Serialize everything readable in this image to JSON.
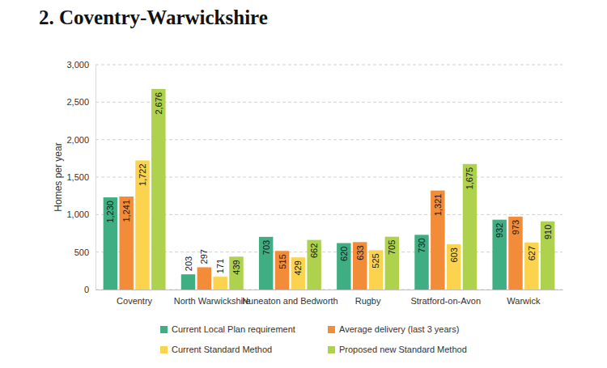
{
  "chart_data": {
    "type": "bar",
    "title": "2. Coventry-Warwickshire",
    "y_label": "Homes per year",
    "categories": [
      "Coventry",
      "North Warwickshire",
      "Nuneaton and Bedworth",
      "Rugby",
      "Stratford-on-Avon",
      "Warwick"
    ],
    "series": [
      {
        "name": "Current Local Plan requirement",
        "color": "#3fae83",
        "values": [
          1230,
          203,
          703,
          620,
          730,
          932
        ],
        "value_labels": [
          "1,230",
          "203",
          "703",
          "620",
          "730",
          "932"
        ]
      },
      {
        "name": "Average delivery (last 3 years)",
        "color": "#f28c38",
        "values": [
          1241,
          297,
          515,
          633,
          1321,
          973
        ],
        "value_labels": [
          "1,241",
          "297",
          "515",
          "633",
          "1,321",
          "973"
        ]
      },
      {
        "name": "Current Standard Method",
        "color": "#fbd34f",
        "values": [
          1722,
          171,
          429,
          525,
          603,
          627
        ],
        "value_labels": [
          "1,722",
          "171",
          "429",
          "525",
          "603",
          "627"
        ]
      },
      {
        "name": "Proposed new Standard Method",
        "color": "#aed14e",
        "values": [
          2676,
          439,
          662,
          705,
          1675,
          910
        ],
        "value_labels": [
          "2,676",
          "439",
          "662",
          "705",
          "1,675",
          "910"
        ]
      }
    ],
    "ylim": [
      0,
      3000
    ],
    "yticks": [
      0,
      500,
      {
        "value": 1000,
        "label": "1,000"
      },
      {
        "value": 1500,
        "label": "1,500"
      },
      {
        "value": 2000,
        "label": "2,000"
      },
      {
        "value": 2500,
        "label": "2,500"
      },
      {
        "value": 3000,
        "label": "3,000"
      }
    ],
    "grid": true,
    "legend": "bottom",
    "data_labels": true
  }
}
